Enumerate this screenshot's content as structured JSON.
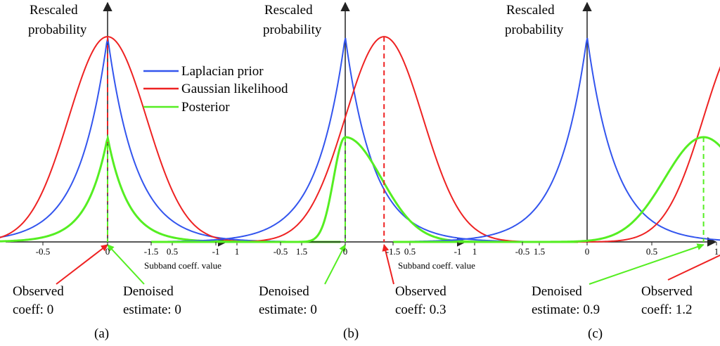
{
  "colors": {
    "prior": "#3355ee",
    "likelihood": "#ee2222",
    "posterior": "#55ee22",
    "axis": "#222222"
  },
  "legend": {
    "items": [
      {
        "label": "Laplacian prior",
        "color": "#3355ee"
      },
      {
        "label": "Gaussian likelihood",
        "color": "#ee2222"
      },
      {
        "label": "Posterior",
        "color": "#55ee22"
      }
    ]
  },
  "chart_data": [
    {
      "type": "line",
      "panel_label": "(a)",
      "ylabel": [
        "Rescaled",
        "probability"
      ],
      "xlabel": "Subband coeff. value",
      "xlim": [
        -1.5,
        1.8
      ],
      "ylim": [
        0,
        1
      ],
      "x_ticks": [
        "-1.5",
        "-1",
        "-0.5",
        "0",
        "0.5",
        "1",
        "1.5"
      ],
      "x_tick_values": [
        -1.5,
        -1,
        -0.5,
        0,
        0.5,
        1,
        1.5
      ],
      "observed_coeff": 0,
      "denoised_estimate": 0,
      "series": [
        {
          "name": "Laplacian prior",
          "kind": "laplace",
          "center": 0,
          "scale": 0.22,
          "peak": 0.96
        },
        {
          "name": "Gaussian likelihood",
          "kind": "gauss",
          "center": 0,
          "sigma": 0.3,
          "peak": 0.96
        },
        {
          "name": "Posterior",
          "kind": "laplace",
          "center": 0,
          "scale": 0.16,
          "peak": 0.49
        }
      ],
      "annotations": [
        {
          "text": [
            "Observed",
            "coeff: 0"
          ],
          "color": "#ee2222",
          "points_to": 0
        },
        {
          "text": [
            "Denoised",
            "estimate: 0"
          ],
          "color": "#55ee22",
          "points_to": 0
        }
      ]
    },
    {
      "type": "line",
      "panel_label": "(b)",
      "ylabel": [
        "Rescaled",
        "probability"
      ],
      "xlabel": "Subband coeff. value",
      "xlim": [
        -1.5,
        1.8
      ],
      "ylim": [
        0,
        1
      ],
      "x_ticks": [
        "-1.5",
        "-1",
        "-0.5",
        "0",
        "0.5",
        "1",
        "1.5"
      ],
      "x_tick_values": [
        -1.5,
        -1,
        -0.5,
        0,
        0.5,
        1,
        1.5
      ],
      "observed_coeff": 0.3,
      "denoised_estimate": 0,
      "series": [
        {
          "name": "Laplacian prior",
          "kind": "laplace",
          "center": 0,
          "scale": 0.22,
          "peak": 0.96
        },
        {
          "name": "Gaussian likelihood",
          "kind": "gauss",
          "center": 0.3,
          "sigma": 0.3,
          "peak": 0.96
        },
        {
          "name": "Posterior",
          "kind": "posterior",
          "center": 0,
          "sigma": 0.2,
          "peak": 0.49
        }
      ],
      "annotations": [
        {
          "text": [
            "Denoised",
            "estimate: 0"
          ],
          "color": "#55ee22",
          "points_to": 0
        },
        {
          "text": [
            "Observed",
            "coeff: 0.3"
          ],
          "color": "#ee2222",
          "points_to": 0.3
        }
      ]
    },
    {
      "type": "line",
      "panel_label": "(c)",
      "ylabel": [
        "Rescaled",
        "probability"
      ],
      "xlabel": "",
      "xlim": [
        -1.5,
        1.8
      ],
      "ylim": [
        0,
        1
      ],
      "x_ticks": [
        "-1.5",
        "-1",
        "-0.5",
        "0",
        "0.5",
        "1",
        "1.5"
      ],
      "x_tick_values": [
        -1.5,
        -1,
        -0.5,
        0,
        0.5,
        1,
        1.5
      ],
      "observed_coeff": 1.2,
      "denoised_estimate": 0.9,
      "series": [
        {
          "name": "Laplacian prior",
          "kind": "laplace",
          "center": 0,
          "scale": 0.22,
          "peak": 0.96
        },
        {
          "name": "Gaussian likelihood",
          "kind": "gauss",
          "center": 1.2,
          "sigma": 0.3,
          "peak": 0.96
        },
        {
          "name": "Posterior",
          "kind": "gauss",
          "center": 0.9,
          "sigma": 0.3,
          "peak": 0.49
        }
      ],
      "annotations": [
        {
          "text": [
            "Denoised",
            "estimate: 0.9"
          ],
          "color": "#55ee22",
          "points_to": 0.9
        },
        {
          "text": [
            "Observed",
            "coeff: 1.2"
          ],
          "color": "#ee2222",
          "points_to": 1.2
        }
      ]
    }
  ]
}
